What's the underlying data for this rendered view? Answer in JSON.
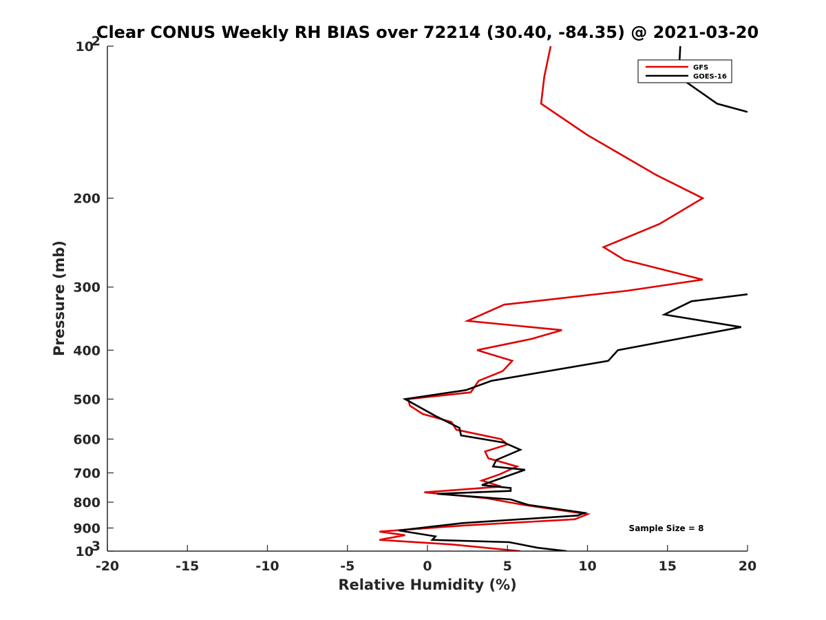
{
  "chart_data": {
    "type": "line",
    "title": "Clear CONUS Weekly RH BIAS over 72214 (30.40, -84.35) @ 2021-03-20",
    "xlabel": "Relative Humidity (%)",
    "ylabel": "Pressure (mb)",
    "xlim": [
      -20,
      20
    ],
    "ylim": [
      100,
      1000
    ],
    "yscale": "log",
    "yreversed": true,
    "x_ticks": [
      "-20",
      "-15",
      "-10",
      "-5",
      "0",
      "5",
      "10",
      "15",
      "20"
    ],
    "y_ticks": [
      {
        "value": 100,
        "base": "10",
        "exp": "2"
      },
      {
        "value": 200,
        "label": "200"
      },
      {
        "value": 300,
        "label": "300"
      },
      {
        "value": 400,
        "label": "400"
      },
      {
        "value": 500,
        "label": "500"
      },
      {
        "value": 600,
        "label": "600"
      },
      {
        "value": 700,
        "label": "700"
      },
      {
        "value": 800,
        "label": "800"
      },
      {
        "value": 900,
        "label": "900"
      },
      {
        "value": 1000,
        "base": "10",
        "exp": "3"
      }
    ],
    "legend_position": "top-right",
    "annotation": "Sample Size = 8",
    "series": [
      {
        "name": "GFS",
        "color": "#e00000",
        "x": [
          7.7,
          7.3,
          7.1,
          10.0,
          14.3,
          17.2,
          14.5,
          11.0,
          12.3,
          17.2,
          12.5,
          4.8,
          2.5,
          8.4,
          6.5,
          3.1,
          5.3,
          4.7,
          3.2,
          2.7,
          -1.2,
          -1.1,
          -0.3,
          1.5,
          1.8,
          4.6,
          5.0,
          3.6,
          3.8,
          5.6,
          4.5,
          3.4,
          4.6,
          -0.2,
          3.6,
          6.0,
          10.0,
          9.2,
          2.2,
          -3.0,
          -1.4,
          -3.0,
          1.5,
          5.8
        ],
        "y": [
          100,
          115,
          130,
          150,
          180,
          200,
          225,
          250,
          265,
          290,
          305,
          325,
          350,
          365,
          380,
          400,
          420,
          440,
          460,
          485,
          500,
          515,
          535,
          555,
          575,
          600,
          615,
          635,
          655,
          680,
          705,
          725,
          745,
          765,
          785,
          810,
          845,
          865,
          890,
          915,
          930,
          950,
          970,
          1000
        ]
      },
      {
        "name": "GOES-16",
        "color": "#000000",
        "x": [
          15.8,
          15.7,
          18.1,
          20.0,
          null,
          20.0,
          16.5,
          14.8,
          19.6,
          11.9,
          11.3,
          4.0,
          2.4,
          -1.4,
          0.5,
          2.0,
          2.1,
          4.8,
          5.8,
          4.3,
          4.1,
          6.1,
          3.4,
          5.2,
          5.2,
          0.6,
          5.2,
          6.3,
          9.8,
          9.4,
          2.2,
          -1.8,
          0.5,
          0.3,
          5.1,
          6.9,
          8.7
        ],
        "y": [
          100,
          115,
          130,
          135,
          null,
          310,
          320,
          340,
          360,
          400,
          420,
          460,
          480,
          500,
          540,
          570,
          590,
          610,
          630,
          660,
          680,
          690,
          740,
          750,
          760,
          770,
          790,
          810,
          840,
          850,
          880,
          910,
          935,
          950,
          960,
          985,
          1000
        ]
      }
    ]
  }
}
